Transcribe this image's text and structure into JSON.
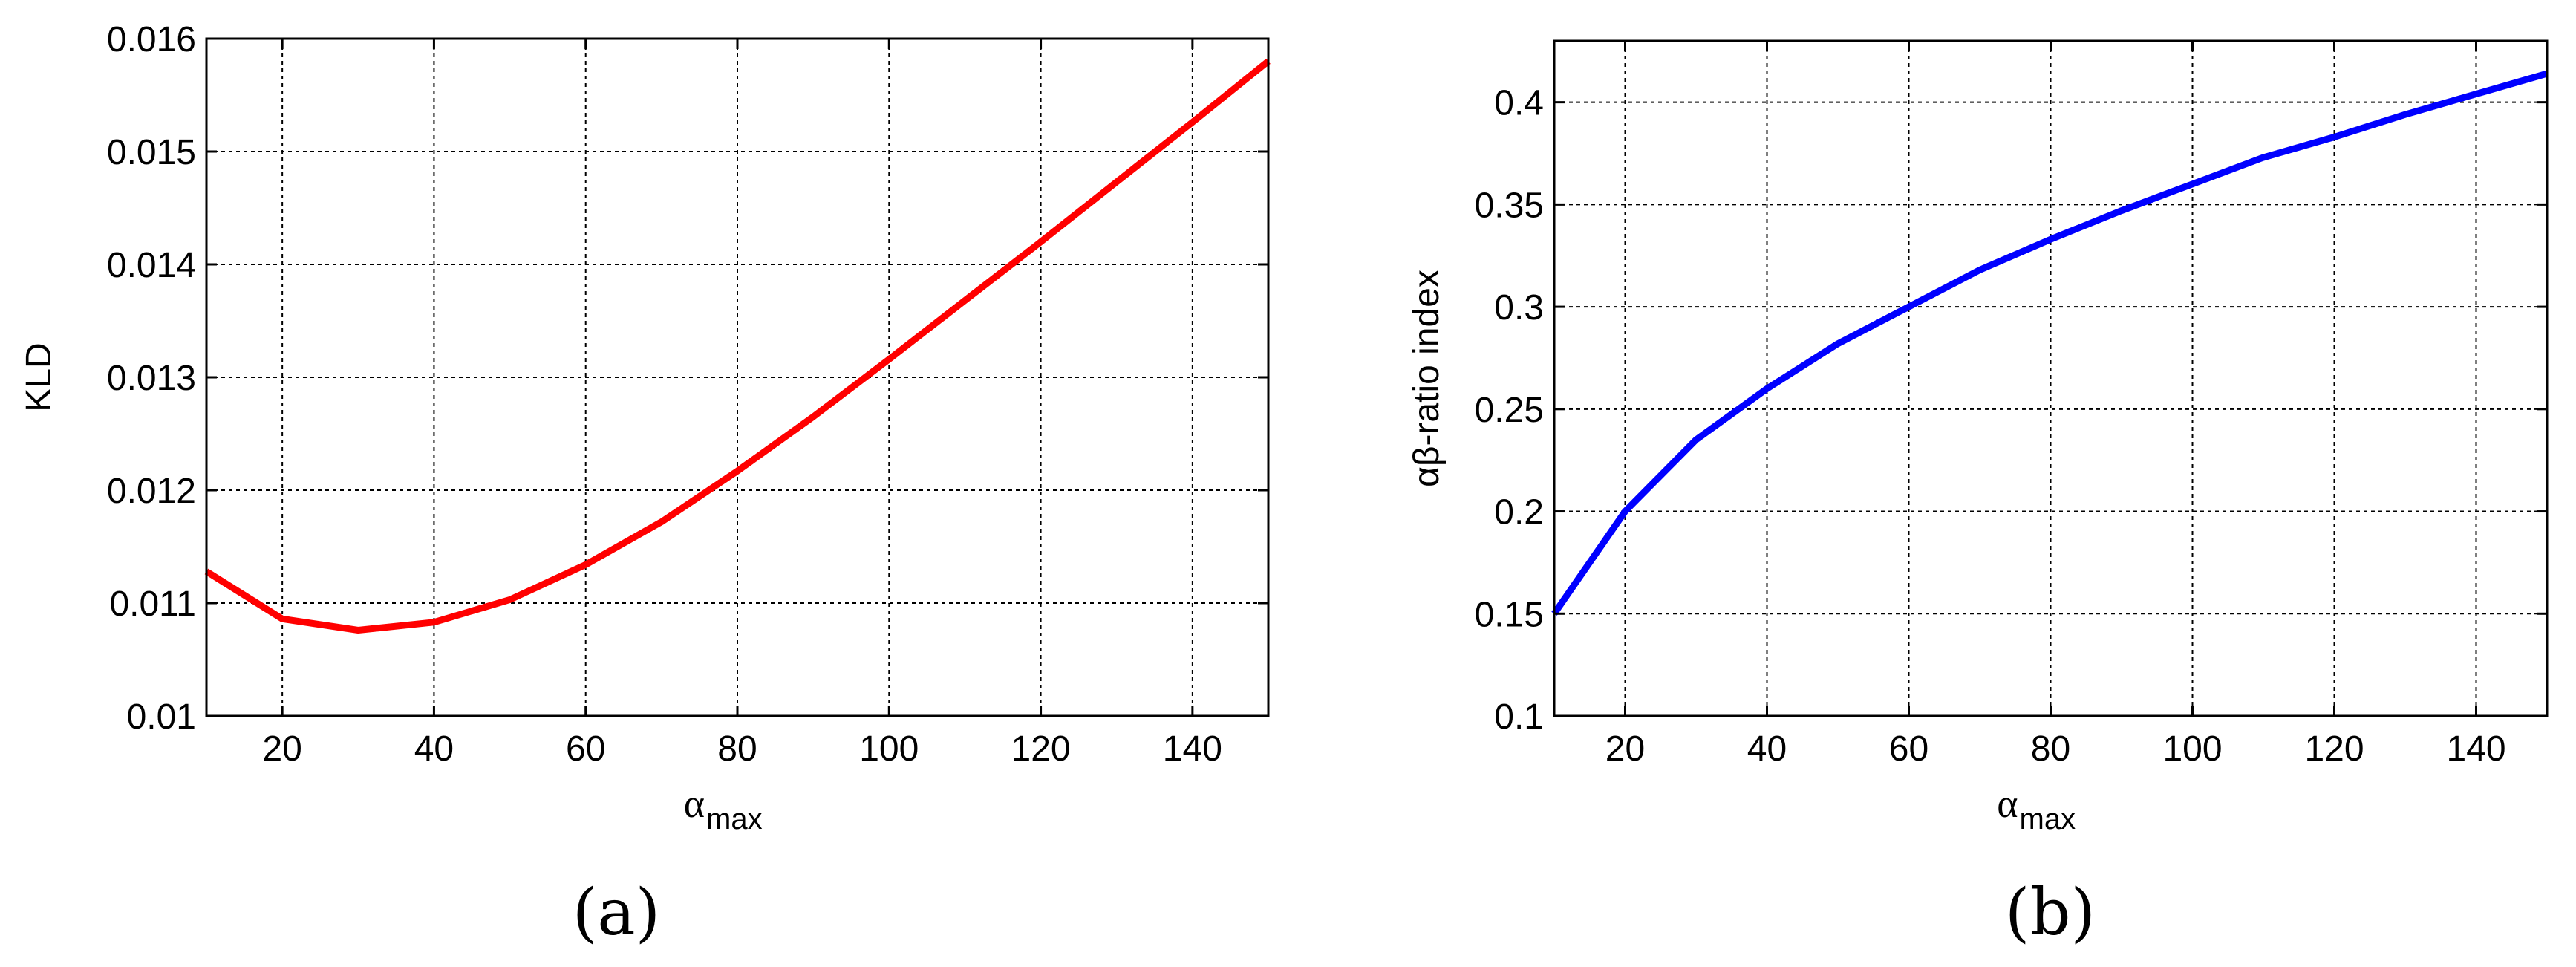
{
  "chart_data": [
    {
      "type": "line",
      "caption": "(a)",
      "ylabel": "KLD",
      "xlabel": "α",
      "xlabel_sub": "max",
      "xlim": [
        10,
        150
      ],
      "ylim": [
        0.01,
        0.016
      ],
      "xticks": [
        20,
        40,
        60,
        80,
        100,
        120,
        140
      ],
      "xtick_labels": [
        "20",
        "40",
        "60",
        "80",
        "100",
        "120",
        "140"
      ],
      "yticks": [
        0.01,
        0.011,
        0.012,
        0.013,
        0.014,
        0.015,
        0.016
      ],
      "ytick_labels": [
        "0.01",
        "0.011",
        "0.012",
        "0.013",
        "0.014",
        "0.015",
        "0.016"
      ],
      "grid": true,
      "series": [
        {
          "color": "#ff0000",
          "x": [
            10,
            20,
            30,
            40,
            50,
            60,
            70,
            80,
            90,
            100,
            110,
            120,
            130,
            140,
            150
          ],
          "y": [
            0.01128,
            0.01086,
            0.01076,
            0.01083,
            0.01103,
            0.01134,
            0.01172,
            0.01217,
            0.01265,
            0.01316,
            0.01368,
            0.0142,
            0.01473,
            0.01526,
            0.0158
          ]
        }
      ]
    },
    {
      "type": "line",
      "caption": "(b)",
      "ylabel": "αβ-ratio index",
      "xlabel": "α",
      "xlabel_sub": "max",
      "xlim": [
        10,
        150
      ],
      "ylim": [
        0.1,
        0.43
      ],
      "xticks": [
        20,
        40,
        60,
        80,
        100,
        120,
        140
      ],
      "xtick_labels": [
        "20",
        "40",
        "60",
        "80",
        "100",
        "120",
        "140"
      ],
      "yticks": [
        0.1,
        0.15,
        0.2,
        0.25,
        0.3,
        0.35,
        0.4
      ],
      "ytick_labels": [
        "0.1",
        "0.15",
        "0.2",
        "0.25",
        "0.3",
        "0.35",
        "0.4"
      ],
      "grid": true,
      "series": [
        {
          "color": "#0000ff",
          "x": [
            10,
            20,
            30,
            40,
            50,
            60,
            70,
            80,
            90,
            100,
            110,
            120,
            130,
            140,
            150
          ],
          "y": [
            0.15,
            0.2,
            0.235,
            0.26,
            0.282,
            0.3,
            0.318,
            0.333,
            0.347,
            0.36,
            0.373,
            0.383,
            0.394,
            0.404,
            0.414
          ]
        }
      ]
    }
  ]
}
